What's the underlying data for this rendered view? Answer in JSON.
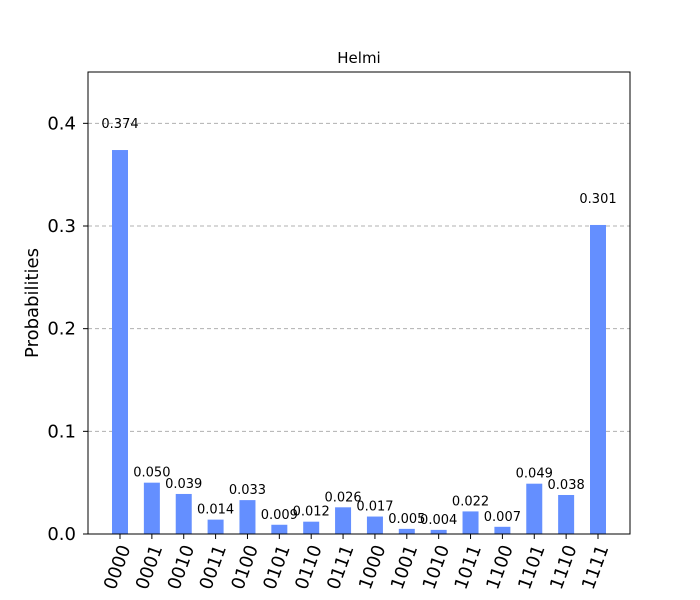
{
  "chart_data": {
    "type": "bar",
    "title": "Helmi",
    "xlabel": "",
    "ylabel": "Probabilities",
    "categories": [
      "0000",
      "0001",
      "0010",
      "0011",
      "0100",
      "0101",
      "0110",
      "0111",
      "1000",
      "1001",
      "1010",
      "1011",
      "1100",
      "1101",
      "1110",
      "1111"
    ],
    "values": [
      0.374,
      0.05,
      0.039,
      0.014,
      0.033,
      0.009,
      0.012,
      0.026,
      0.017,
      0.005,
      0.004,
      0.022,
      0.007,
      0.049,
      0.038,
      0.301
    ],
    "value_labels": [
      "0.374",
      "0.050",
      "0.039",
      "0.014",
      "0.033",
      "0.009",
      "0.012",
      "0.026",
      "0.017",
      "0.005",
      "0.004",
      "0.022",
      "0.007",
      "0.049",
      "0.038",
      "0.301"
    ],
    "ylim": [
      0,
      0.45
    ],
    "yticks": [
      0.0,
      0.1,
      0.2,
      0.3,
      0.4
    ],
    "ytick_labels": [
      "0.0",
      "0.1",
      "0.2",
      "0.3",
      "0.4"
    ],
    "grid": "horizontal dashed",
    "bar_color": "#648fff"
  }
}
